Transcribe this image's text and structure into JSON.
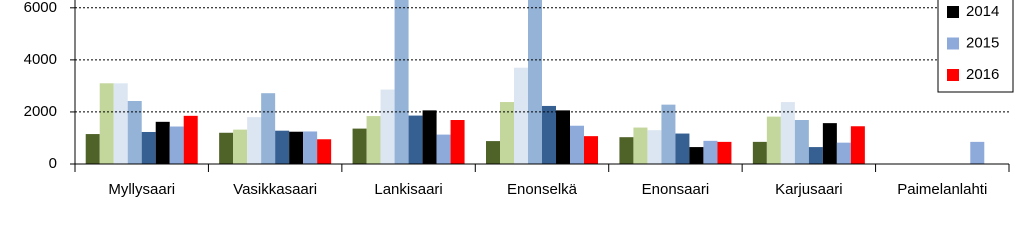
{
  "chart_data": {
    "type": "bar",
    "categories": [
      "Myllysaari",
      "Vasikkasaari",
      "Lankisaari",
      "Enonselkä",
      "Enonsaari",
      "Karjusaari",
      "Paimelanlahti"
    ],
    "series": [
      {
        "color": "#4f6228",
        "values": [
          1150,
          1200,
          1360,
          880,
          1030,
          850,
          null
        ]
      },
      {
        "color": "#c3d69b",
        "values": [
          3100,
          1320,
          1840,
          2380,
          1400,
          1820,
          null
        ]
      },
      {
        "color": "#dce6f2",
        "values": [
          3100,
          1800,
          2860,
          3700,
          1300,
          2380,
          null
        ]
      },
      {
        "color": "#95b3d7",
        "values": [
          2420,
          2720,
          7000,
          7000,
          2280,
          1690,
          null
        ]
      },
      {
        "color": "#376092",
        "values": [
          1230,
          1280,
          1860,
          2230,
          1170,
          650,
          null
        ]
      },
      {
        "name": "2014",
        "color": "#000000",
        "values": [
          1620,
          1240,
          2060,
          2060,
          650,
          1570,
          null
        ]
      },
      {
        "name": "2015",
        "color": "#8eaadb",
        "values": [
          1440,
          1250,
          1130,
          1470,
          890,
          820,
          850
        ]
      },
      {
        "name": "2016",
        "color": "#ff0000",
        "values": [
          1850,
          950,
          1690,
          1070,
          850,
          1450,
          null
        ]
      }
    ],
    "ylim": [
      0,
      6300
    ],
    "yticks": [
      0,
      2000,
      4000,
      6000
    ],
    "grid": true
  }
}
